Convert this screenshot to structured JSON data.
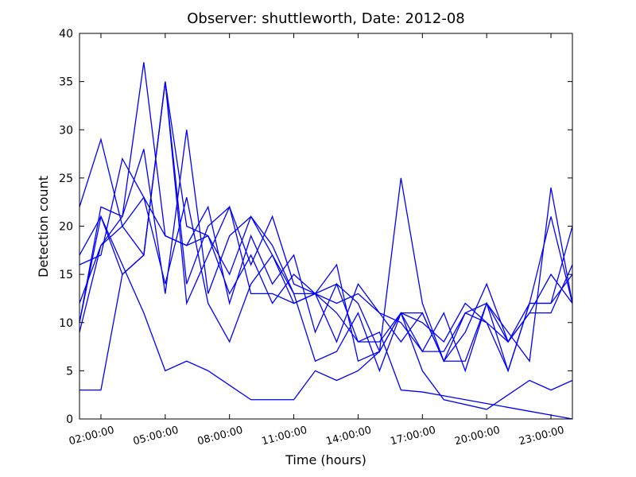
{
  "chart_data": {
    "type": "line",
    "title": "Observer: shuttleworth, Date: 2012-08",
    "xlabel": "Time (hours)",
    "ylabel": "Detection count",
    "x": [
      1,
      2,
      3,
      4,
      5,
      6,
      7,
      8,
      9,
      10,
      11,
      12,
      13,
      14,
      15,
      16,
      17,
      18,
      19,
      20,
      21,
      22,
      23,
      24
    ],
    "xlim": [
      1,
      24
    ],
    "xticks": [
      {
        "value": 2,
        "label": "02:00:00"
      },
      {
        "value": 5,
        "label": "05:00:00"
      },
      {
        "value": 8,
        "label": "08:00:00"
      },
      {
        "value": 11,
        "label": "11:00:00"
      },
      {
        "value": 14,
        "label": "14:00:00"
      },
      {
        "value": 17,
        "label": "17:00:00"
      },
      {
        "value": 20,
        "label": "20:00:00"
      },
      {
        "value": 23,
        "label": "23:00:00"
      }
    ],
    "ylim": [
      0,
      40
    ],
    "yticks": [
      0,
      5,
      10,
      15,
      20,
      25,
      30,
      35,
      40
    ],
    "series": [
      {
        "color": "#0000ff",
        "values": [
          12,
          18,
          21,
          37,
          19,
          18,
          19,
          15,
          21,
          17,
          12,
          13,
          16,
          6,
          7,
          11,
          11,
          6,
          6,
          12,
          5,
          12,
          12,
          20
        ]
      },
      {
        "color": "#0000ff",
        "values": [
          17,
          21,
          15,
          17,
          35,
          20,
          19,
          13,
          17,
          12,
          15,
          13,
          14,
          12,
          7,
          25,
          12,
          6,
          9,
          14,
          8,
          12,
          12,
          15
        ]
      },
      {
        "color": "#0000ff",
        "values": [
          22,
          29,
          20,
          23,
          19,
          18,
          22,
          12,
          19,
          14,
          17,
          9,
          14,
          8,
          8,
          11,
          7,
          11,
          5,
          12,
          9,
          6,
          24,
          12
        ]
      },
      {
        "color": "#0000ff",
        "values": [
          10,
          22,
          21,
          28,
          13,
          30,
          13,
          19,
          21,
          18,
          13,
          6,
          7,
          11,
          5,
          11,
          10,
          8,
          12,
          10,
          5,
          12,
          21,
          12
        ]
      },
      {
        "color": "#0000ff",
        "values": [
          16,
          17,
          27,
          23,
          14,
          23,
          12,
          8,
          14,
          17,
          13,
          13,
          8,
          14,
          11,
          10,
          7,
          7,
          11,
          10,
          8,
          11,
          15,
          12
        ]
      },
      {
        "color": "#0000ff",
        "values": [
          9,
          18,
          20,
          17,
          35,
          12,
          17,
          22,
          13,
          13,
          12,
          13,
          12,
          13,
          11,
          8,
          11,
          6,
          11,
          12,
          8,
          11,
          11,
          16
        ]
      },
      {
        "color": "#0000ff",
        "values": [
          3,
          3,
          15,
          17,
          35,
          14,
          20,
          22,
          16,
          21,
          14,
          13,
          11,
          8,
          9,
          3,
          2.8,
          2.4,
          2,
          1.6,
          1.2,
          0.8,
          0.4,
          0
        ]
      },
      {
        "color": "#0000ff",
        "values": [
          10,
          21,
          16,
          11,
          5,
          6,
          5,
          3.5,
          2,
          2,
          2,
          5,
          4,
          5,
          7,
          11,
          5,
          2,
          1.5,
          1,
          2.5,
          4,
          3,
          4
        ]
      }
    ]
  }
}
